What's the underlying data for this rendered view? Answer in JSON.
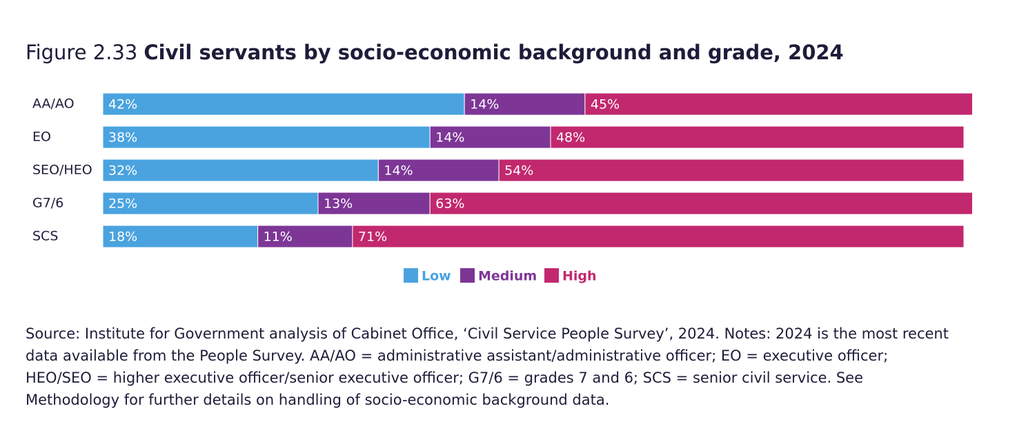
{
  "chart_data": {
    "type": "stacked-bar-horizontal",
    "figure_label": "Figure 2.33",
    "title": "Civil servants by socio-economic background and grade, 2024",
    "categories": [
      "AA/AO",
      "EO",
      "SEO/HEO",
      "G7/6",
      "SCS"
    ],
    "xlim": [
      0,
      100
    ],
    "series": [
      {
        "name": "Low",
        "color": "#4aa3df",
        "values": [
          42,
          38,
          32,
          25,
          18
        ],
        "value_labels": [
          "42%",
          "38%",
          "32%",
          "25%",
          "18%"
        ]
      },
      {
        "name": "Medium",
        "color": "#7d3696",
        "values": [
          14,
          14,
          14,
          13,
          11
        ],
        "value_labels": [
          "14%",
          "14%",
          "14%",
          "13%",
          "11%"
        ]
      },
      {
        "name": "High",
        "color": "#c2286e",
        "values": [
          45,
          48,
          54,
          63,
          71
        ],
        "value_labels": [
          "45%",
          "48%",
          "54%",
          "63%",
          "71%"
        ]
      }
    ],
    "note": "Source: Institute for Government analysis of Cabinet Office, ‘Civil Service People Survey’, 2024. Notes: 2024 is the most recent data available from the People Survey. AA/AO = administrative assistant/administrative officer; EO = executive officer; HEO/SEO = higher executive officer/senior executive officer; G7/6 = grades 7 and 6; SCS = senior civil service. See Methodology for further details on handling of socio-economic background data."
  }
}
